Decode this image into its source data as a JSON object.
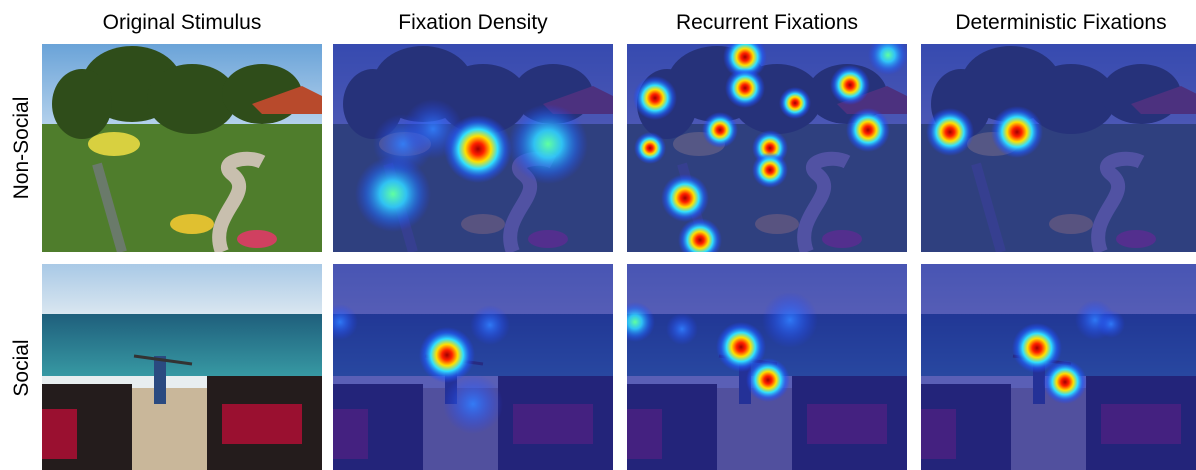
{
  "columns": [
    "Original Stimulus",
    "Fixation Density",
    "Recurrent Fixations",
    "Deterministic Fixations"
  ],
  "rows": [
    "Non-Social",
    "Social"
  ]
}
